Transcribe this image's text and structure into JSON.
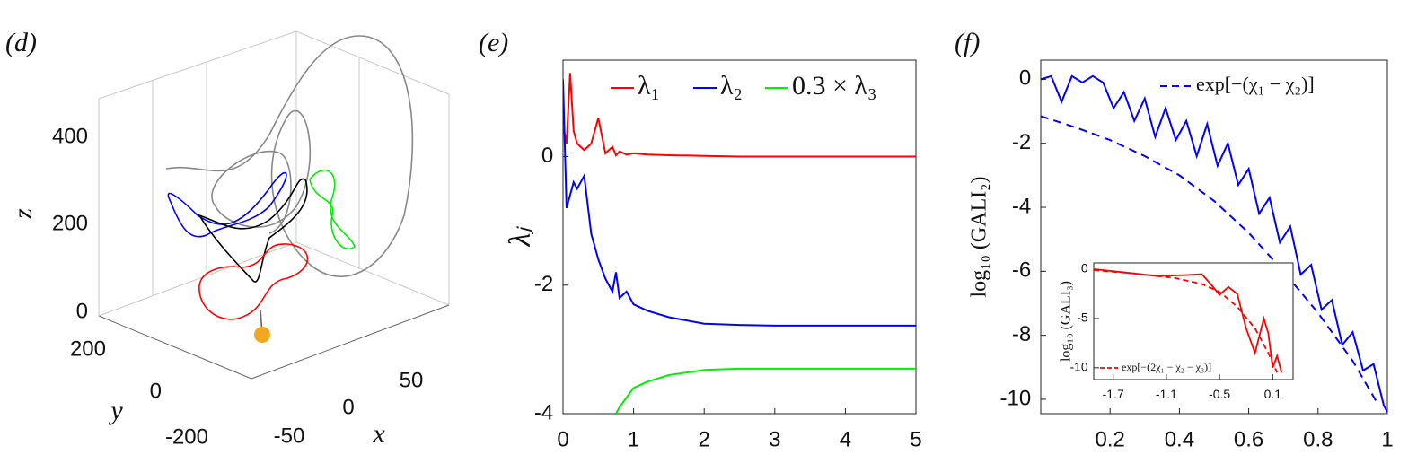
{
  "chart_data": [
    {
      "type": "scatter3d",
      "panel_label": "(d)",
      "xlabel": "x",
      "ylabel": "y",
      "zlabel": "z",
      "xticks": [
        50,
        0,
        -50
      ],
      "yticks": [
        200,
        0,
        -200
      ],
      "zticks": [
        400,
        200,
        0
      ]
    },
    {
      "type": "line",
      "panel_label": "(e)",
      "ylabel": "λⱼ",
      "xlim": [
        0,
        5
      ],
      "ylim": [
        -4,
        1.5
      ],
      "xticks": [
        0,
        1,
        2,
        3,
        4,
        5
      ],
      "yticks": [
        0,
        -2,
        -4
      ],
      "x": [
        0,
        0.05,
        0.1,
        0.15,
        0.2,
        0.3,
        0.4,
        0.5,
        0.6,
        0.7,
        0.75,
        0.8,
        0.9,
        1,
        1.2,
        1.5,
        2,
        2.5,
        3,
        4,
        5
      ],
      "series": [
        {
          "name": "λ₁",
          "color": "#ff0000",
          "values": [
            0.5,
            0.2,
            1.3,
            0.4,
            0.2,
            0.1,
            0.2,
            0.6,
            0.05,
            0.15,
            0.02,
            0.08,
            0.03,
            0.05,
            0.03,
            0.02,
            0.01,
            0,
            0,
            0,
            0
          ]
        },
        {
          "name": "λ₂",
          "color": "#0000ff",
          "values": [
            1.2,
            -0.8,
            -0.6,
            -0.4,
            -0.5,
            -0.3,
            -1.2,
            -1.6,
            -1.9,
            -2.1,
            -1.8,
            -2.2,
            -2.1,
            -2.3,
            -2.4,
            -2.5,
            -2.6,
            -2.62,
            -2.63,
            -2.63,
            -2.63
          ]
        },
        {
          "name": "0.3 × λ₃",
          "color": "#00ee00",
          "values": [
            null,
            null,
            null,
            null,
            null,
            null,
            null,
            null,
            null,
            null,
            -4,
            -3.9,
            -3.75,
            -3.6,
            -3.5,
            -3.4,
            -3.32,
            -3.3,
            -3.3,
            -3.3,
            -3.3
          ]
        }
      ]
    },
    {
      "type": "line",
      "panel_label": "(f)",
      "ylabel": "log₁₀ (GALI₂)",
      "xlim": [
        0,
        1
      ],
      "ylim": [
        -10.45,
        0.6
      ],
      "xticks": [
        0.2,
        0.4,
        0.6,
        0.8,
        1
      ],
      "yticks": [
        0,
        -2,
        -4,
        -6,
        -8,
        -10
      ],
      "series": [
        {
          "color": "#0000ff",
          "dash": false,
          "x": [
            0,
            0.03,
            0.06,
            0.09,
            0.12,
            0.15,
            0.18,
            0.21,
            0.24,
            0.27,
            0.3,
            0.33,
            0.36,
            0.39,
            0.42,
            0.45,
            0.48,
            0.51,
            0.54,
            0.57,
            0.6,
            0.63,
            0.66,
            0.69,
            0.72,
            0.75,
            0.78,
            0.81,
            0.84,
            0.87,
            0.9,
            0.93,
            0.96,
            0.99,
            1
          ],
          "values": [
            0,
            0.1,
            -0.7,
            0.1,
            -0.1,
            0.1,
            -0.1,
            -0.9,
            -0.4,
            -1.3,
            -0.6,
            -1.8,
            -0.9,
            -1.9,
            -1.3,
            -2.4,
            -1.4,
            -2.7,
            -2,
            -3.3,
            -2.8,
            -4.2,
            -3.7,
            -5.1,
            -4.6,
            -6.1,
            -5.8,
            -7.2,
            -6.9,
            -8.3,
            -7.9,
            -9.1,
            -8.9,
            -10.2,
            -10.4
          ]
        },
        {
          "name": "exp[−(χ₁ − χ₂)]",
          "color": "#0000ff",
          "dash": true,
          "x": [
            0,
            0.1,
            0.2,
            0.3,
            0.4,
            0.5,
            0.6,
            0.7,
            0.8,
            0.9,
            0.97
          ],
          "values": [
            -1.15,
            -1.5,
            -1.9,
            -2.4,
            -3,
            -3.8,
            -4.8,
            -6,
            -7.3,
            -8.8,
            -10.1
          ]
        }
      ]
    },
    {
      "type": "line",
      "ylabel": "log₁₀ (GALI₃)",
      "xlim": [
        -1.92,
        0.33
      ],
      "ylim": [
        -11.2,
        0.64
      ],
      "xticks": [
        -1.7,
        -1.1,
        -0.5,
        0.1
      ],
      "yticks": [
        0,
        -5,
        -10
      ],
      "series": [
        {
          "color": "#ff0000",
          "dash": false,
          "x": [
            -1.92,
            -1.6,
            -1.2,
            -0.9,
            -0.7,
            -0.6,
            -0.5,
            -0.4,
            -0.3,
            -0.2,
            -0.1,
            0,
            0.05,
            0.1,
            0.15,
            0.2
          ],
          "values": [
            0,
            -0.3,
            -0.7,
            -0.6,
            -0.5,
            -1.5,
            -2.6,
            -1.8,
            -2.5,
            -6,
            -8.5,
            -5,
            -6.5,
            -10,
            -8.8,
            -10.5
          ]
        },
        {
          "name": "exp[−(2χ₁ − χ₂ − χ₃)]",
          "color": "#ff0000",
          "dash": true,
          "x": [
            -1.92,
            -1.5,
            -1,
            -0.7,
            -0.5,
            -0.3,
            -0.1,
            0.05,
            0.15
          ],
          "values": [
            -0.1,
            -0.4,
            -0.9,
            -1.5,
            -2.3,
            -3.8,
            -6,
            -8.5,
            -10.5
          ]
        }
      ]
    }
  ]
}
